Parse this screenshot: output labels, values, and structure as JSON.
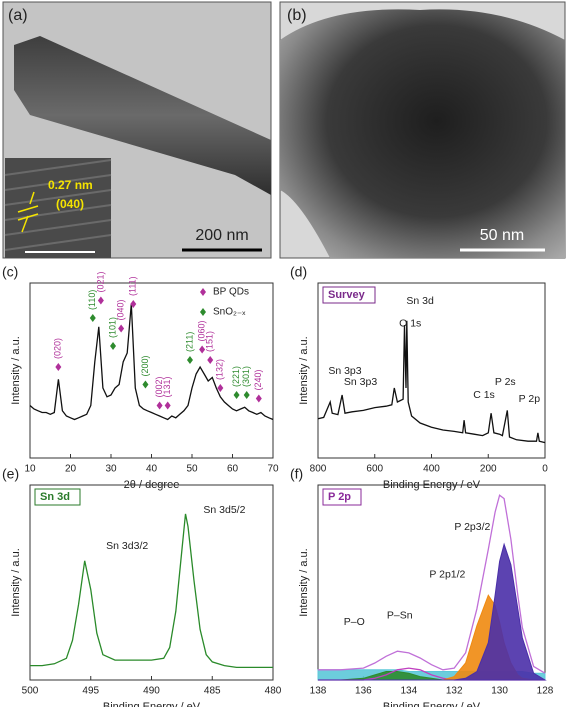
{
  "images": [
    {
      "label": "(a)",
      "scale": "200 nm",
      "inset_spacing": "0.27 nm",
      "inset_plane": "(040)"
    },
    {
      "label": "(b)",
      "scale": "50 nm"
    }
  ],
  "chart_data": [
    {
      "type": "line",
      "panel_label": "(c)",
      "xlabel": "2θ / degree",
      "ylabel": "Intensity / a.u.",
      "xlim": [
        10,
        70
      ],
      "xticks": [
        10,
        20,
        30,
        40,
        50,
        60,
        70
      ],
      "ylim": [
        0,
        100
      ],
      "x": [
        10,
        11,
        12,
        13,
        14,
        15,
        16,
        17,
        18,
        19,
        20,
        21,
        22,
        23,
        24,
        25,
        26,
        27,
        28,
        29,
        30,
        31,
        32,
        33,
        34,
        35,
        36,
        37,
        38,
        39,
        40,
        41,
        42,
        43,
        44,
        45,
        46,
        47,
        48,
        49,
        50,
        51,
        52,
        53,
        54,
        55,
        56,
        57,
        58,
        59,
        60,
        61,
        62,
        63,
        64,
        65,
        66,
        67,
        68,
        69,
        70
      ],
      "series": [
        {
          "color": "#111111",
          "values": [
            30,
            28,
            27,
            26,
            26,
            25,
            26,
            45,
            27,
            24,
            23,
            22,
            23,
            24,
            25,
            30,
            55,
            75,
            40,
            35,
            36,
            40,
            42,
            55,
            60,
            88,
            40,
            30,
            28,
            27,
            26,
            25,
            24,
            23,
            22,
            24,
            23,
            25,
            27,
            30,
            40,
            48,
            52,
            48,
            44,
            46,
            40,
            35,
            32,
            30,
            28,
            27,
            28,
            29,
            27,
            26,
            25,
            26,
            24,
            23,
            22
          ]
        }
      ],
      "legend_items": [
        {
          "label": "BP QDs",
          "color": "#b0309a"
        },
        {
          "label": "SnO₂₋ₓ",
          "color": "#2e8b2e"
        }
      ],
      "annotations": [
        {
          "text": "(020)",
          "x": 17,
          "y": 52,
          "color": "#b0309a",
          "vertical": true
        },
        {
          "text": "(110)",
          "x": 25.5,
          "y": 80,
          "color": "#2e8b2e",
          "vertical": true
        },
        {
          "text": "(021)",
          "x": 27.5,
          "y": 90,
          "color": "#b0309a",
          "vertical": true
        },
        {
          "text": "(101)",
          "x": 30.5,
          "y": 64,
          "color": "#2e8b2e",
          "vertical": true
        },
        {
          "text": "(040)",
          "x": 32.5,
          "y": 74,
          "color": "#b0309a",
          "vertical": true
        },
        {
          "text": "(111)",
          "x": 35.5,
          "y": 88,
          "color": "#b0309a",
          "vertical": true
        },
        {
          "text": "(200)",
          "x": 38.5,
          "y": 42,
          "color": "#2e8b2e",
          "vertical": true
        },
        {
          "text": "(002)",
          "x": 42,
          "y": 30,
          "color": "#b0309a",
          "vertical": true
        },
        {
          "text": "(131)",
          "x": 44,
          "y": 30,
          "color": "#b0309a",
          "vertical": true
        },
        {
          "text": "(211)",
          "x": 49.5,
          "y": 56,
          "color": "#2e8b2e",
          "vertical": true
        },
        {
          "text": "(060)",
          "x": 52.5,
          "y": 62,
          "color": "#b0309a",
          "vertical": true
        },
        {
          "text": "(151)",
          "x": 54.5,
          "y": 56,
          "color": "#b0309a",
          "vertical": true
        },
        {
          "text": "(132)",
          "x": 57,
          "y": 40,
          "color": "#b0309a",
          "vertical": true
        },
        {
          "text": "(221)",
          "x": 61,
          "y": 36,
          "color": "#2e8b2e",
          "vertical": true
        },
        {
          "text": "(301)",
          "x": 63.5,
          "y": 36,
          "color": "#2e8b2e",
          "vertical": true
        },
        {
          "text": "(240)",
          "x": 66.5,
          "y": 34,
          "color": "#b0309a",
          "vertical": true
        }
      ]
    },
    {
      "type": "line",
      "panel_label": "(d)",
      "box_label": "Survey",
      "box_color": "#7a2a8a",
      "xlabel": "Binding Energy / eV",
      "ylabel": "Intensity / a.u.",
      "xlim": [
        800,
        0
      ],
      "xticks": [
        800,
        600,
        400,
        200,
        0
      ],
      "ylim": [
        0,
        125
      ],
      "x": [
        800,
        780,
        757,
        750,
        730,
        715,
        705,
        680,
        640,
        600,
        560,
        540,
        531,
        520,
        500,
        495,
        490,
        487,
        482,
        470,
        440,
        400,
        360,
        320,
        290,
        285,
        280,
        250,
        220,
        200,
        190,
        180,
        160,
        150,
        133,
        125,
        100,
        60,
        30,
        25,
        20,
        0
      ],
      "series": [
        {
          "color": "#111111",
          "values": [
            28,
            29,
            40,
            32,
            31,
            45,
            32,
            33,
            34,
            36,
            37,
            38,
            50,
            40,
            42,
            95,
            50,
            98,
            40,
            30,
            25,
            22,
            20,
            19,
            18,
            27,
            18,
            17,
            16,
            18,
            32,
            18,
            17,
            16,
            34,
            15,
            13,
            12,
            12,
            18,
            12,
            11
          ]
        }
      ],
      "annotations": [
        {
          "text": "Sn 3d",
          "x": 440,
          "y": 112
        },
        {
          "text": "O 1s",
          "x": 475,
          "y": 96
        },
        {
          "text": "Sn 3p3",
          "x": 705,
          "y": 62
        },
        {
          "text": "Sn 3p3",
          "x": 650,
          "y": 54
        },
        {
          "text": "C 1s",
          "x": 215,
          "y": 45
        },
        {
          "text": "P 2s",
          "x": 140,
          "y": 54
        },
        {
          "text": "P 2p",
          "x": 55,
          "y": 42
        }
      ]
    },
    {
      "type": "line",
      "panel_label": "(e)",
      "box_label": "Sn 3d",
      "box_color": "#2a7a2a",
      "xlabel": "Binding Energy / eV",
      "ylabel": "Intensity / a.u.",
      "xlim": [
        500,
        480
      ],
      "xticks": [
        500,
        495,
        490,
        485,
        480
      ],
      "ylim": [
        0,
        108
      ],
      "x": [
        500,
        499,
        498,
        497,
        496.5,
        496,
        495.5,
        495,
        494.5,
        494,
        493,
        492,
        491,
        490,
        489,
        488.5,
        488,
        487.5,
        487.2,
        487,
        486.5,
        486,
        485.5,
        485,
        484,
        483,
        482,
        481,
        480
      ],
      "series": [
        {
          "color": "#2a8a2a",
          "values": [
            8,
            8,
            9,
            12,
            22,
            42,
            66,
            50,
            26,
            14,
            11,
            11,
            11,
            11,
            12,
            18,
            38,
            72,
            92,
            85,
            55,
            28,
            14,
            10,
            8,
            7,
            7,
            7,
            7
          ]
        }
      ],
      "annotations": [
        {
          "text": "Sn 3d3/2",
          "x": 492,
          "y": 74
        },
        {
          "text": "Sn 3d5/2",
          "x": 484,
          "y": 94
        }
      ]
    },
    {
      "type": "area",
      "panel_label": "(f)",
      "box_label": "P 2p",
      "box_color": "#8a2a9a",
      "xlabel": "Binding Energy / eV",
      "ylabel": "Intensity / a.u.",
      "xlim": [
        138,
        128
      ],
      "xticks": [
        138,
        136,
        134,
        132,
        130,
        128
      ],
      "ylim": [
        0,
        115
      ],
      "x": [
        138,
        137,
        136,
        135.5,
        135,
        134.5,
        134,
        133.5,
        133,
        132.5,
        132,
        131.5,
        131,
        130.5,
        130.2,
        130,
        129.8,
        129.5,
        129.2,
        129,
        128.5,
        128
      ],
      "series": [
        {
          "color": "#5cc8d8",
          "fill": true,
          "values": [
            6,
            6,
            6,
            6,
            6,
            6,
            5,
            5,
            5,
            5,
            5,
            5,
            5,
            5,
            5,
            5,
            5,
            5,
            5,
            5,
            4,
            4
          ]
        },
        {
          "color": "#2e8b2e",
          "fill": true,
          "values": [
            0,
            0,
            1,
            3,
            5,
            5,
            4,
            2,
            1,
            0,
            0,
            0,
            0,
            0,
            0,
            0,
            0,
            0,
            0,
            0,
            0,
            0
          ]
        },
        {
          "color": "#c040c0",
          "fill": false,
          "values": [
            0,
            0,
            0,
            1,
            3,
            6,
            7,
            6,
            3,
            1,
            0,
            0,
            0,
            0,
            0,
            0,
            0,
            0,
            0,
            0,
            0,
            0
          ]
        },
        {
          "color": "#f08a10",
          "fill": true,
          "values": [
            0,
            0,
            0,
            0,
            0,
            0,
            0,
            0,
            0,
            0,
            2,
            10,
            32,
            50,
            44,
            34,
            22,
            10,
            3,
            1,
            0,
            0
          ]
        },
        {
          "color": "#4a2fa8",
          "fill": true,
          "values": [
            0,
            0,
            0,
            0,
            0,
            0,
            0,
            0,
            0,
            0,
            0,
            1,
            5,
            22,
            50,
            70,
            80,
            68,
            42,
            25,
            4,
            0
          ]
        },
        {
          "color": "#c070d8",
          "fill": false,
          "values": [
            6,
            6,
            7,
            10,
            14,
            17,
            16,
            13,
            9,
            6,
            7,
            16,
            42,
            77,
            99,
            109,
            107,
            83,
            50,
            31,
            8,
            4
          ]
        }
      ],
      "annotations": [
        {
          "text": "P 2p3/2",
          "x": 131.2,
          "y": 90
        },
        {
          "text": "P 2p1/2",
          "x": 132.3,
          "y": 62
        },
        {
          "text": "P–O",
          "x": 136.4,
          "y": 34
        },
        {
          "text": "P–Sn",
          "x": 134.4,
          "y": 38
        }
      ]
    }
  ]
}
